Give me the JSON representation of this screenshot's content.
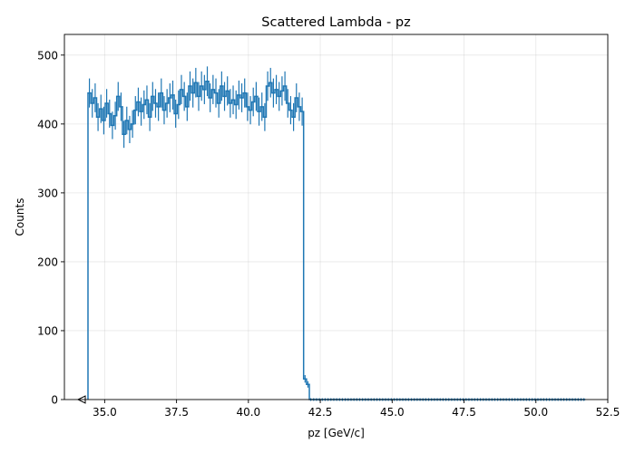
{
  "chart_data": {
    "type": "histogram",
    "title": "Scattered Lambda - pz",
    "xlabel": "pz [GeV/c]",
    "ylabel": "Counts",
    "xlim": [
      33.6,
      52.5
    ],
    "ylim": [
      0,
      530
    ],
    "xticks": [
      35.0,
      37.5,
      40.0,
      42.5,
      45.0,
      47.5,
      50.0,
      52.5
    ],
    "xtick_labels": [
      "35.0",
      "37.5",
      "40.0",
      "42.5",
      "45.0",
      "47.5",
      "50.0",
      "52.5"
    ],
    "yticks": [
      0,
      100,
      200,
      300,
      400,
      500
    ],
    "ytick_labels": [
      "0",
      "100",
      "200",
      "300",
      "400",
      "500"
    ],
    "grid": true,
    "series": [
      {
        "color": "#1f77b4",
        "bin_start": 34.42,
        "bin_width": 0.1,
        "values": [
          445,
          430,
          438,
          410,
          422,
          405,
          430,
          415,
          398,
          412,
          440,
          425,
          385,
          405,
          392,
          400,
          420,
          432,
          418,
          428,
          435,
          410,
          440,
          430,
          425,
          445,
          420,
          430,
          438,
          442,
          415,
          428,
          450,
          440,
          425,
          455,
          445,
          460,
          440,
          455,
          450,
          462,
          438,
          450,
          445,
          430,
          455,
          440,
          448,
          430,
          435,
          428,
          442,
          438,
          445,
          425,
          420,
          432,
          440,
          418,
          425,
          410,
          455,
          460,
          445,
          450,
          440,
          448,
          455,
          430,
          420,
          410,
          438,
          425,
          418,
          30,
          22,
          0,
          0,
          0,
          0,
          0,
          0,
          0,
          0,
          0,
          0,
          0,
          0,
          0,
          0,
          0,
          0,
          0,
          0,
          0,
          0,
          0,
          0,
          0,
          0,
          0,
          0,
          0,
          0,
          0,
          0,
          0,
          0,
          0,
          0,
          0,
          0,
          0,
          0,
          0,
          0,
          0,
          0,
          0,
          0,
          0,
          0,
          0,
          0,
          0,
          0,
          0,
          0,
          0,
          0,
          0,
          0,
          0,
          0,
          0,
          0,
          0,
          0,
          0,
          0,
          0,
          0,
          0,
          0,
          0,
          0,
          0,
          0,
          0,
          0,
          0,
          0,
          0,
          0,
          0,
          0,
          0,
          0,
          0,
          0,
          0,
          0,
          0,
          0,
          0,
          0,
          0,
          0,
          0,
          0,
          0,
          0
        ],
        "errors_sqrt_n": true
      }
    ],
    "underflow_marker": {
      "x": 34.2,
      "y": 0,
      "shape": "left-triangle"
    }
  }
}
